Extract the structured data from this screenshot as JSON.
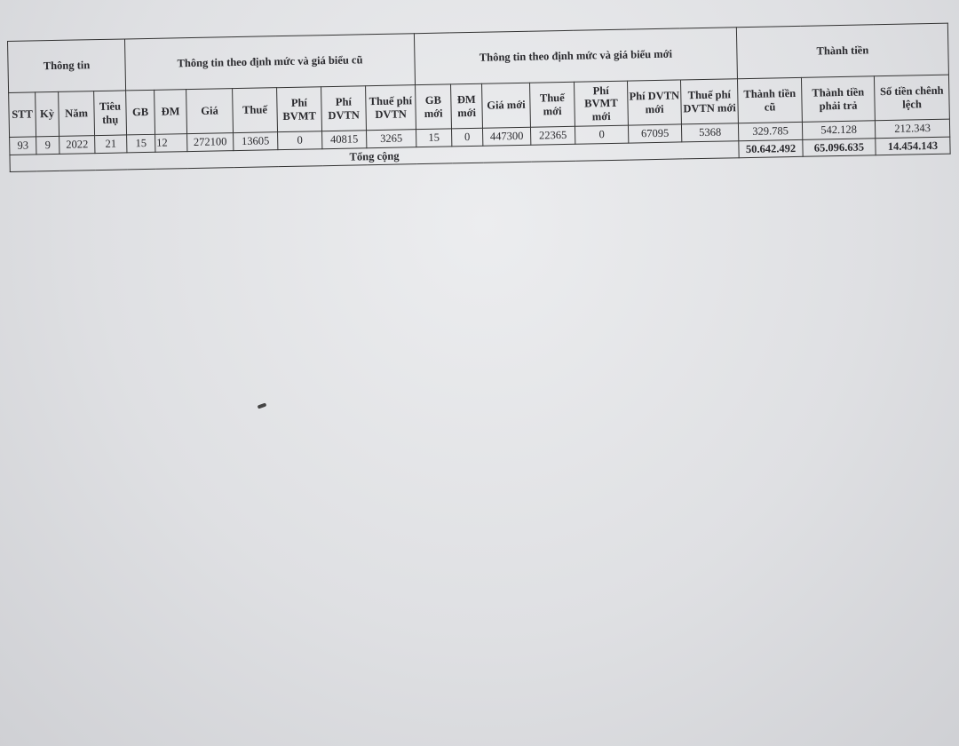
{
  "table": {
    "groups": [
      "Thông tin",
      "Thông tin theo định mức và giá biểu cũ",
      "Thông tin theo định mức và giá biểu mới",
      "Thành tiền"
    ],
    "columns": [
      "STT",
      "Kỳ",
      "Năm",
      "Tiêu thụ",
      "GB",
      "ĐM",
      "Giá",
      "Thuế",
      "Phí BVMT",
      "Phí DVTN",
      "Thuế phí DVTN",
      "GB mới",
      "ĐM mới",
      "Giá mới",
      "Thuế mới",
      "Phí BVMT mới",
      "Phí DVTN mới",
      "Thuế phí DVTN mới",
      "Thành tiền cũ",
      "Thành tiền phải trả",
      "Số tiền chênh lệch"
    ],
    "rows": [
      [
        "93",
        "9",
        "2022",
        "21",
        "15",
        "12",
        "272100",
        "13605",
        "0",
        "40815",
        "3265",
        "15",
        "0",
        "447300",
        "22365",
        "0",
        "67095",
        "5368",
        "329.785",
        "542.128",
        "212.343"
      ]
    ],
    "total": {
      "label": "Tổng cộng",
      "values": [
        "50.642.492",
        "65.096.635",
        "14.454.143"
      ]
    }
  }
}
